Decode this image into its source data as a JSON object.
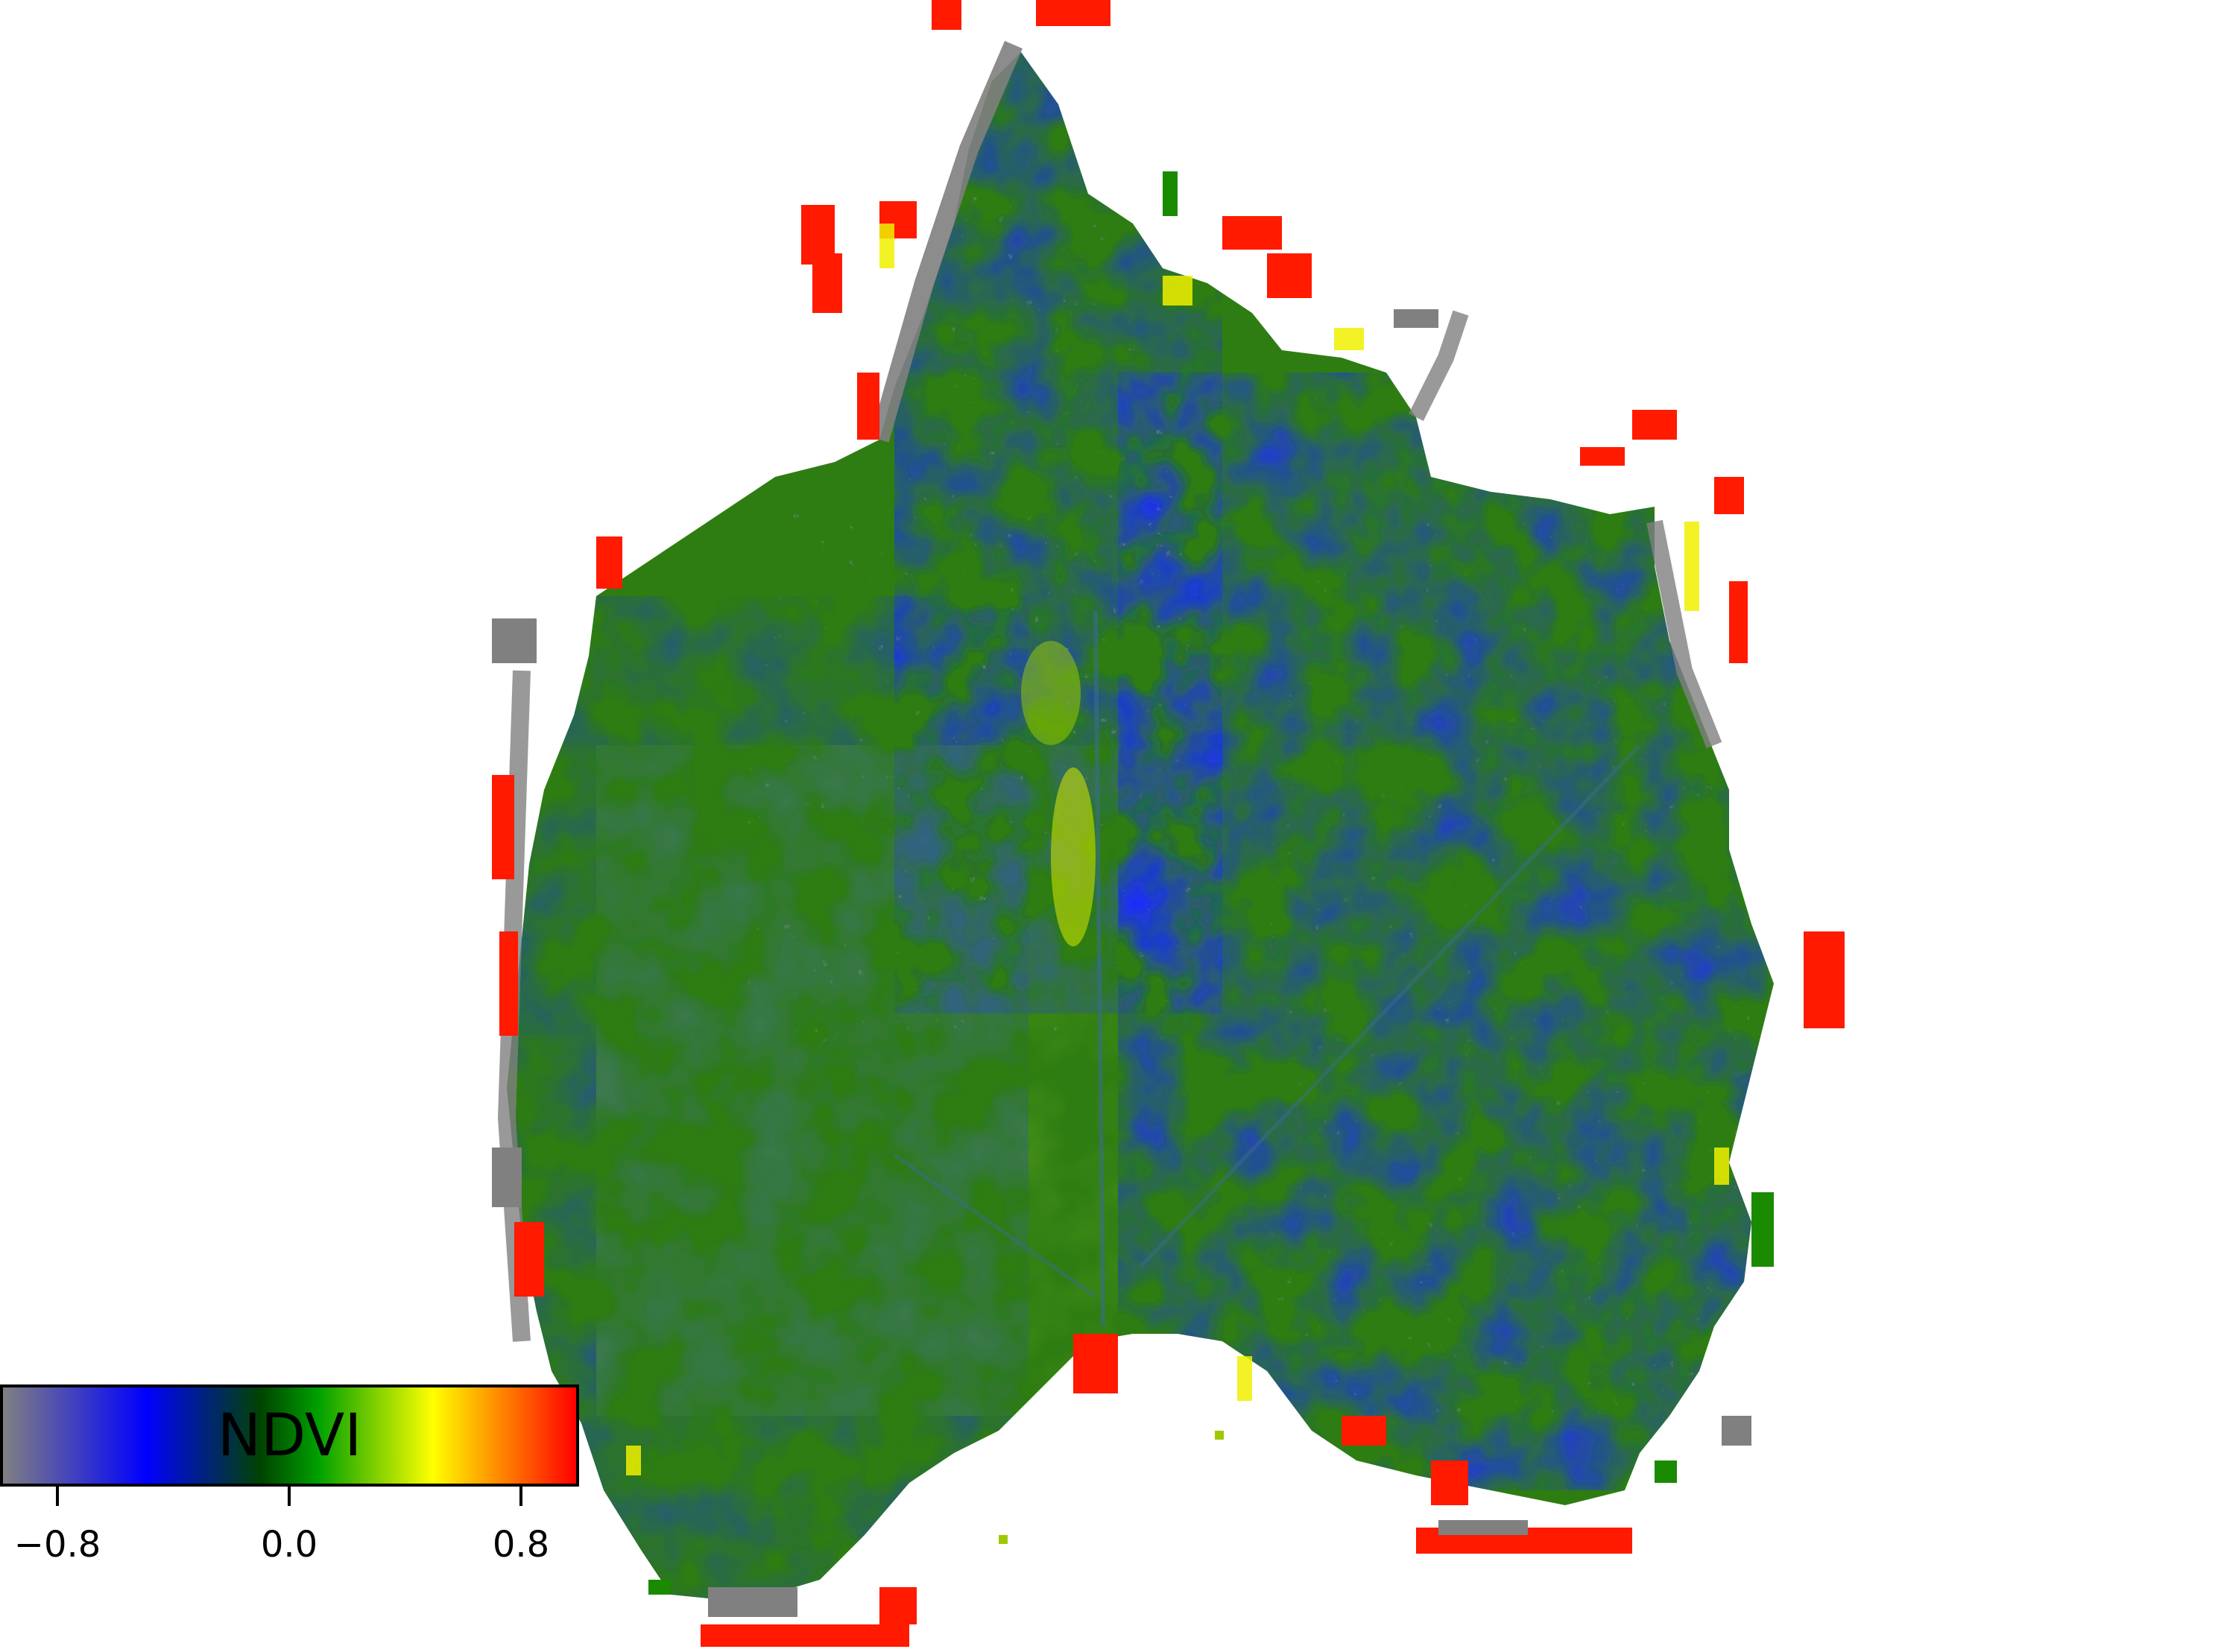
{
  "figure": {
    "colorbar": {
      "label": "NDVI",
      "ticks": [
        {
          "value": -0.8,
          "label": "−0.8"
        },
        {
          "value": 0.0,
          "label": "0.0"
        },
        {
          "value": 0.8,
          "label": "0.8"
        }
      ],
      "range": [
        -1.0,
        1.0
      ],
      "colormap": [
        "#808080",
        "#0000ff",
        "#006400",
        "#7cfc00",
        "#ffff00",
        "#ff0000"
      ]
    },
    "colors": {
      "background": "#ffffff",
      "leaf_body_green": "#2e7d12",
      "leaf_body_blue": "#1a2cff",
      "edge_red": "#ff1a00",
      "edge_gray": "#808080",
      "edge_yellow": "#f0f000"
    }
  }
}
